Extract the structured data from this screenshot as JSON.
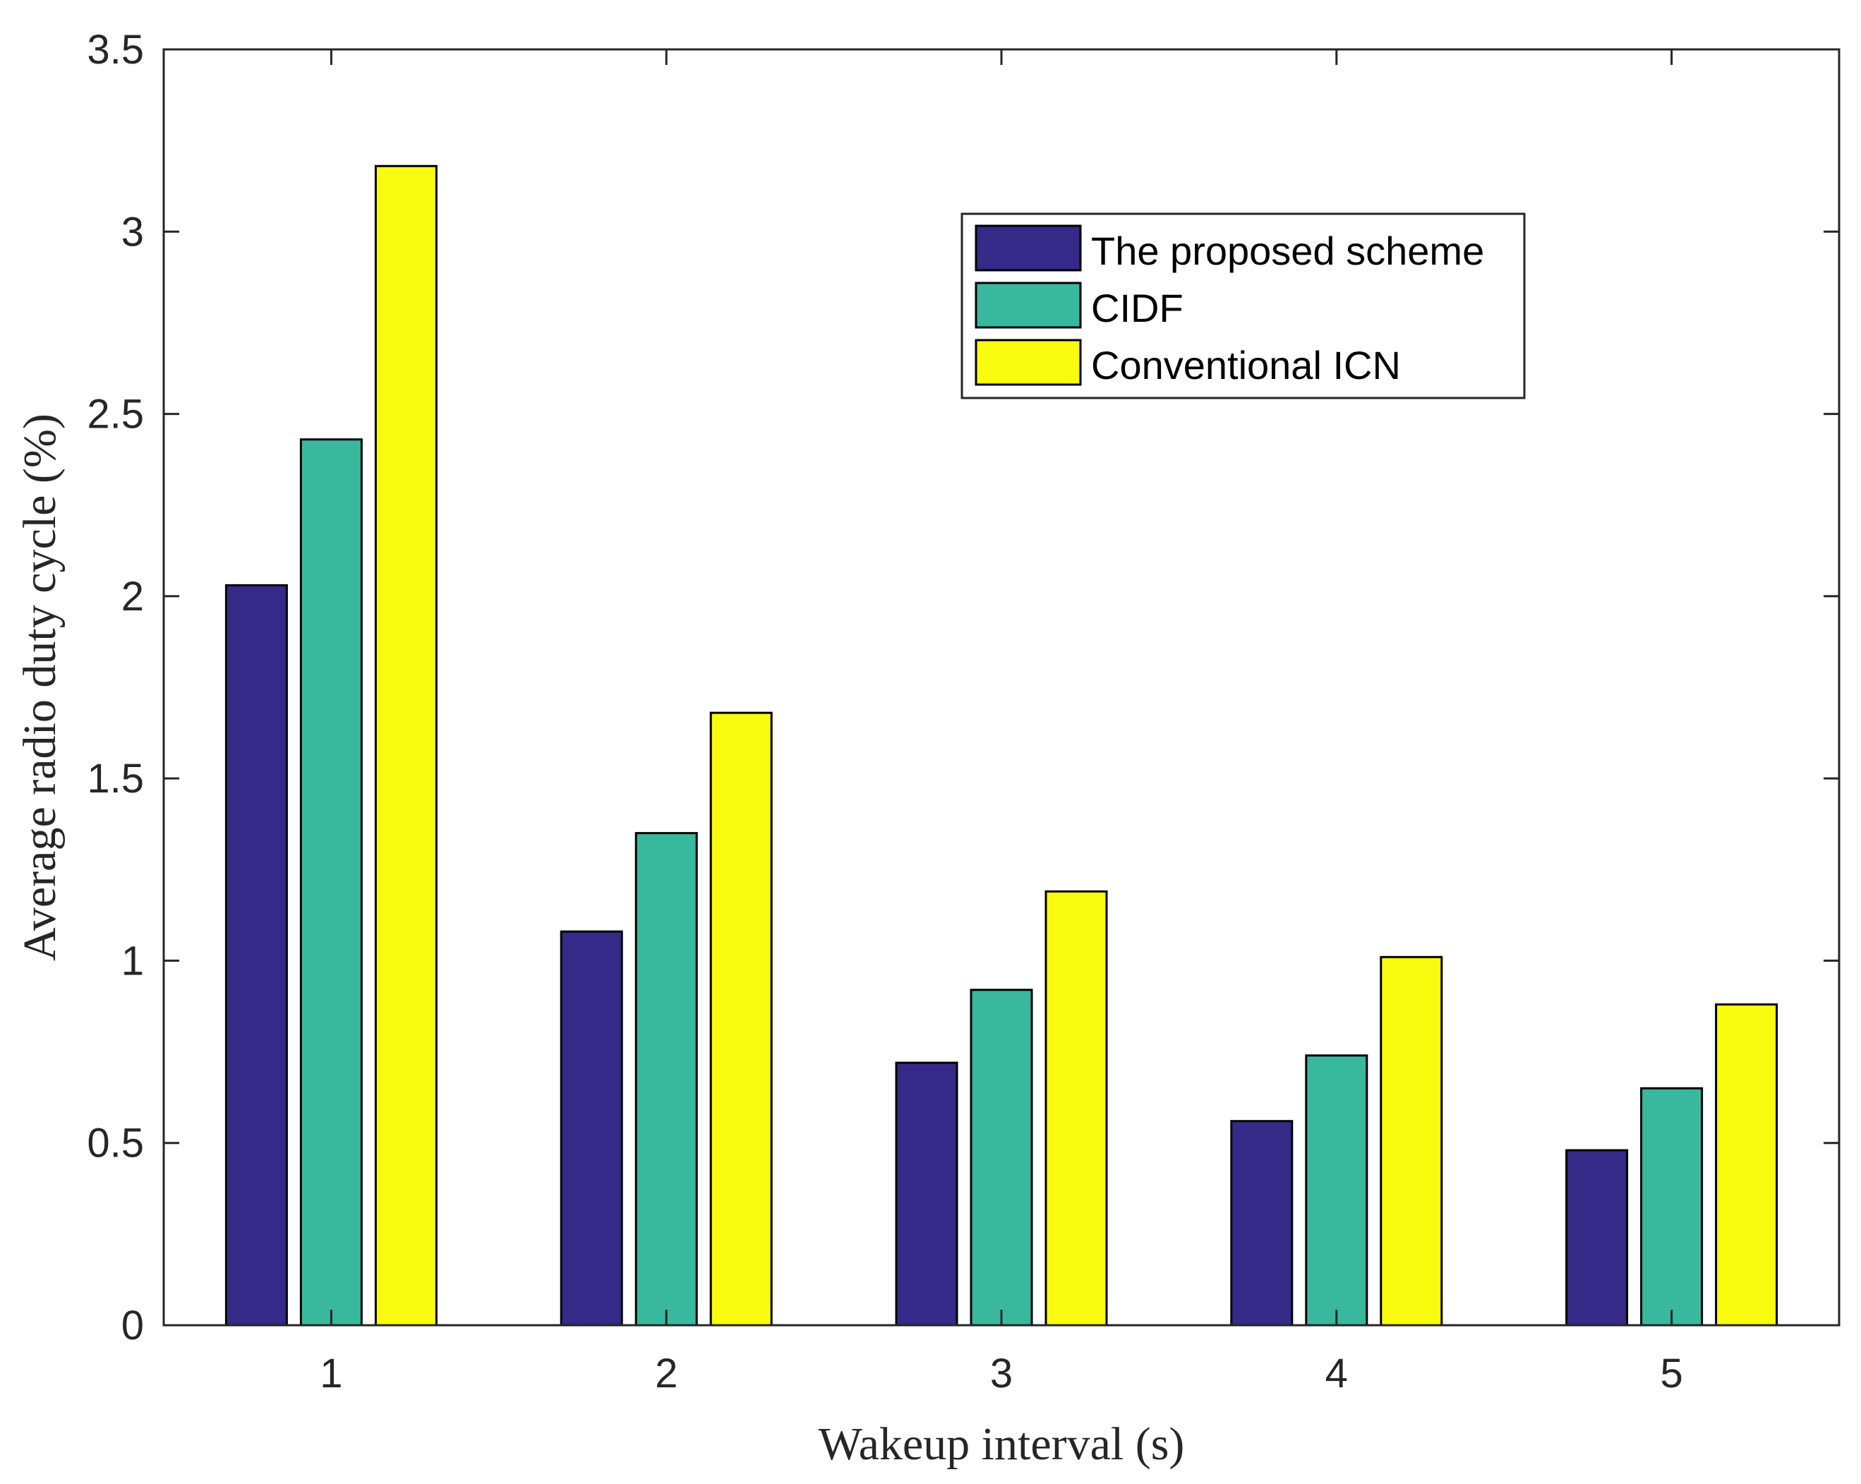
{
  "chart_data": {
    "type": "bar",
    "title": "",
    "xlabel": "Wakeup interval (s)",
    "ylabel": "Average radio duty cycle (%)",
    "categories": [
      "1",
      "2",
      "3",
      "4",
      "5"
    ],
    "ylim": [
      0,
      3.5
    ],
    "yticks": [
      "0",
      "0.5",
      "1",
      "1.5",
      "2",
      "2.5",
      "3",
      "3.5"
    ],
    "grid": false,
    "legend_position": "top-right",
    "series": [
      {
        "name": "The proposed scheme",
        "color": "#352a87",
        "values": [
          2.03,
          1.08,
          0.72,
          0.56,
          0.48
        ]
      },
      {
        "name": "CIDF",
        "color": "#38b99e",
        "values": [
          2.43,
          1.35,
          0.92,
          0.74,
          0.65
        ]
      },
      {
        "name": "Conventional ICN",
        "color": "#f9fb0e",
        "values": [
          3.18,
          1.68,
          1.19,
          1.01,
          0.88
        ]
      }
    ]
  }
}
